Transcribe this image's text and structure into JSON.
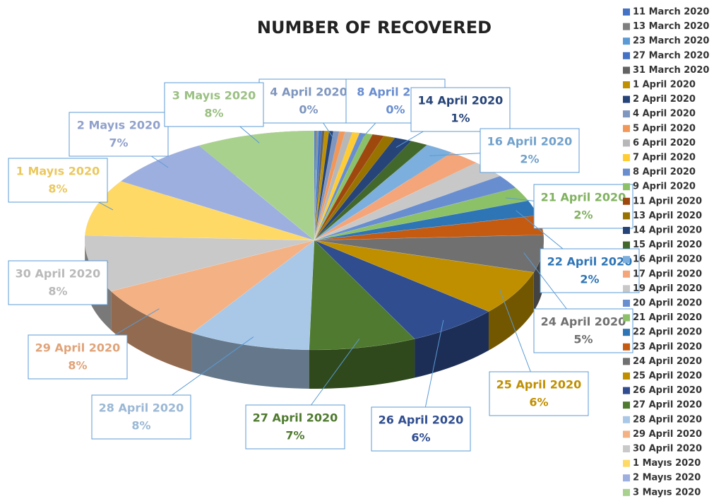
{
  "chart_data": {
    "type": "pie3d",
    "title": "NUMBER OF RECOVERED",
    "categories": [
      "11 March 2020",
      "13 March 2020",
      "23 March 2020",
      "27 March 2020",
      "31 March 2020",
      "1 April 2020",
      "2 April 2020",
      "4 April 2020",
      "5 April 2020",
      "6 April 2020",
      "7 April 2020",
      "8 April 2020",
      "9 April 2020",
      "11 April 2020",
      "13 April 2020",
      "14 April 2020",
      "15 April 2020",
      "16 April 2020",
      "17 April 2020",
      "19 April 2020",
      "20 April 2020",
      "21 April 2020",
      "22 April 2020",
      "23 April 2020",
      "24 April 2020",
      "25 April 2020",
      "26 April 2020",
      "27 April 2020",
      "28 April 2020",
      "29 April 2020",
      "30 April 2020",
      "1 Mayıs 2020",
      "2 Mayıs 2020",
      "3 Mayıs 2020"
    ],
    "values": [
      0.1,
      0.1,
      0.1,
      0.2,
      0.2,
      0.3,
      0.3,
      0.4,
      0.4,
      0.5,
      0.5,
      0.4,
      0.5,
      0.8,
      0.8,
      1.2,
      1.2,
      2,
      2.2,
      2.5,
      2,
      2,
      2.2,
      2.8,
      5.4,
      6.4,
      6.4,
      7.4,
      8.4,
      8.2,
      8.2,
      8.2,
      7.4,
      8.2
    ],
    "value_labels": [
      null,
      null,
      null,
      null,
      null,
      null,
      null,
      "0%",
      null,
      null,
      null,
      "0%",
      null,
      null,
      null,
      "1%",
      null,
      "2%",
      null,
      null,
      null,
      "2%",
      "2%",
      null,
      "5%",
      "6%",
      "6%",
      "7%",
      "8%",
      "8%",
      "8%",
      "8%",
      "7%",
      "8%"
    ],
    "colors": [
      "#4472c4",
      "#7f7f7f",
      "#5b9bd5",
      "#4472c4",
      "#636363",
      "#bf9000",
      "#264478",
      "#7f96bf",
      "#f1975a",
      "#b7b7b7",
      "#ffcd33",
      "#698ed0",
      "#8cc168",
      "#9e480e",
      "#997300",
      "#264478",
      "#43682b",
      "#7cafdd",
      "#f4a57a",
      "#c8c8c8",
      "#698ed0",
      "#8cc168",
      "#2e75b6",
      "#c55a11",
      "#707070",
      "#bf8f00",
      "#2f4d8f",
      "#4f7a2f",
      "#a9c8e8",
      "#f4b183",
      "#c9c9c9",
      "#ffd966",
      "#9dafdf",
      "#a9d18e"
    ],
    "legend": "right"
  }
}
